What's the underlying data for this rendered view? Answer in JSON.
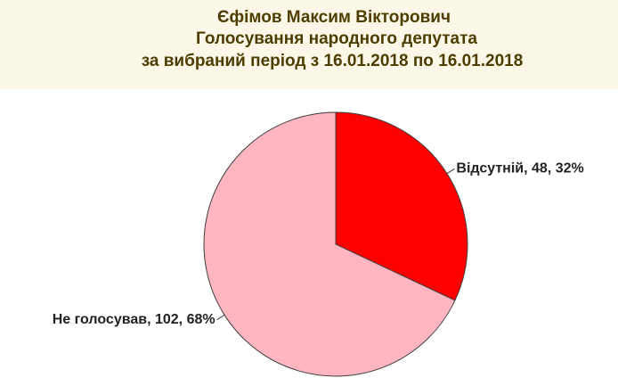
{
  "chart_data": {
    "type": "pie",
    "title": [
      "Єфімов Максим Вікторович",
      "Голосування народного депутата",
      "за вибраний період з 16.01.2018 по 16.01.2018"
    ],
    "values": [
      48,
      102
    ],
    "value_labels": [
      "Відсутній, 48, 32%",
      "Не голосував, 102, 68%"
    ],
    "colors": [
      "#ff0000",
      "#ffb6c1"
    ]
  }
}
